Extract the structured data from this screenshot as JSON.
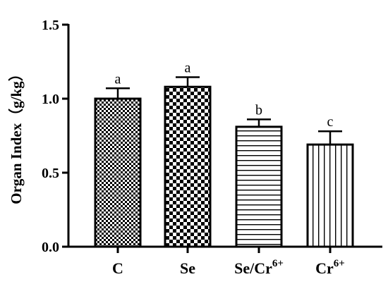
{
  "chart_data": {
    "type": "bar",
    "ylabel": "Organ Index（g/kg）",
    "ylim": [
      0,
      1.5
    ],
    "yticks": [
      "0.0",
      "0.5",
      "1.0",
      "1.5"
    ],
    "grid": false,
    "categories": [
      {
        "base": "C",
        "sup": ""
      },
      {
        "base": "Se",
        "sup": ""
      },
      {
        "base": "Se/Cr",
        "sup": "6+"
      },
      {
        "base": "Cr",
        "sup": "6+"
      }
    ],
    "values": [
      1.0,
      1.08,
      0.81,
      0.69
    ],
    "error": [
      0.07,
      0.065,
      0.05,
      0.09
    ],
    "significance": [
      "a",
      "a",
      "b",
      "c"
    ],
    "patterns": [
      "fine-checker",
      "coarse-checker",
      "horizontal-lines",
      "vertical-lines"
    ]
  }
}
